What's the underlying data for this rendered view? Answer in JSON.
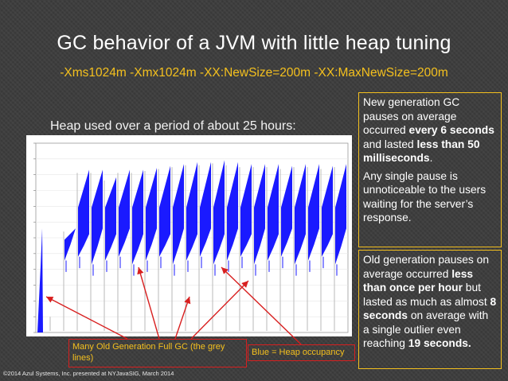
{
  "slide": {
    "title": "GC behavior of a JVM with little heap tuning",
    "flags": "-Xms1024m -Xmx1024m -XX:NewSize=200m -XX:MaxNewSize=200m",
    "heap_caption": "Heap used over a period of about 25 hours:",
    "note_young": {
      "p1_a": "New generation GC pauses on average occurred ",
      "p1_b": "every 6 seconds",
      "p1_c": " and lasted ",
      "p1_d": "less than 50 milliseconds",
      "p1_e": ".",
      "p2": "Any single pause is unnoticeable to the users waiting for the server’s response."
    },
    "note_old": {
      "a": "Old generation pauses on average occurred ",
      "b": "less than once per hour",
      "c": " but lasted as much as almost ",
      "d": "8 seconds",
      "e": " on average with a single outlier even reaching ",
      "f": "19 seconds."
    },
    "label_full_gc": "Many Old Generation Full GC (the grey lines)",
    "label_heap": "Blue = Heap occupancy",
    "copyright": "©2014 Azul Systems, Inc. presented at NYJavaSIG, March 2014"
  },
  "chart_data": {
    "type": "area",
    "title": "",
    "xlabel": "",
    "ylabel": "",
    "series": [
      {
        "values": [
          0.1,
          0.55,
          0.86,
          0.86,
          0.82,
          0.86,
          0.86,
          0.87,
          0.88,
          0.89,
          0.9,
          0.9,
          0.91,
          0.9,
          0.89,
          0.89,
          0.89,
          0.88,
          0.89,
          0.89,
          0.88,
          0.89
        ]
      }
    ],
    "colors": {
      "heap": "#1a1aff",
      "gc_line": "#c0c0c0",
      "arrow": "#d81f1f"
    }
  }
}
